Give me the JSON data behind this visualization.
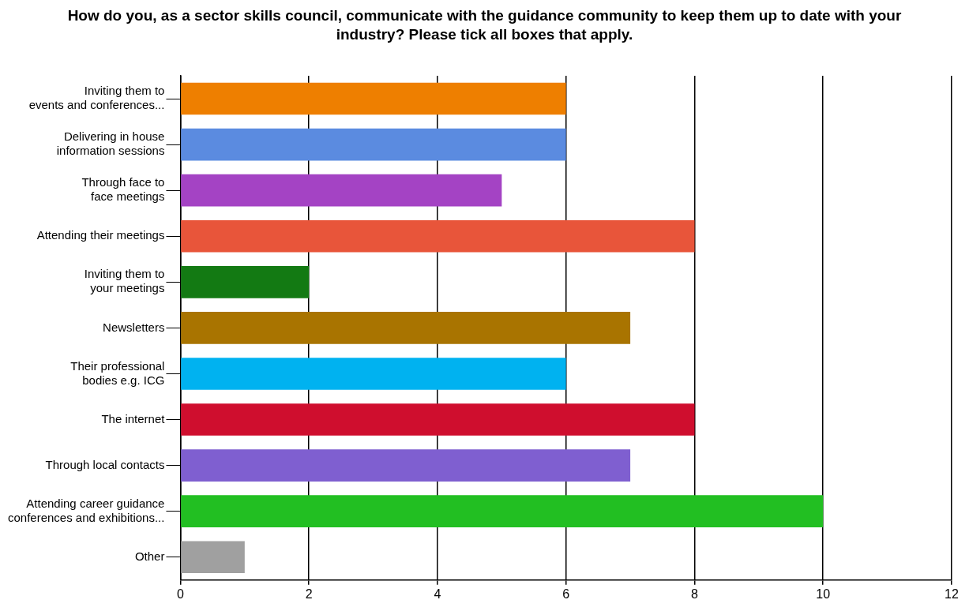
{
  "chart_data": {
    "type": "bar",
    "orientation": "horizontal",
    "title": "How do you, as a sector skills council, communicate with the guidance community to keep them up to date with your industry? Please tick all boxes that apply.",
    "categories": [
      "Inviting them to\nevents and conferences...",
      "Delivering in house\ninformation sessions",
      "Through face to\nface meetings",
      "Attending their meetings",
      "Inviting them to\nyour meetings",
      "Newsletters",
      "Their professional\nbodies e.g. ICG",
      "The internet",
      "Through local contacts",
      "Attending career guidance\nconferences and exhibitions...",
      "Other"
    ],
    "values": [
      6,
      6,
      5,
      8,
      2,
      7,
      6,
      8,
      7,
      10,
      1
    ],
    "colors": [
      "#ee7f00",
      "#5b8be0",
      "#a443c4",
      "#e8553a",
      "#137a13",
      "#a97400",
      "#00b2f0",
      "#cf0e2e",
      "#7f5fd0",
      "#22bf22",
      "#a0a0a0"
    ],
    "xlim": [
      0,
      12
    ],
    "xticks": [
      0,
      2,
      4,
      6,
      8,
      10,
      12
    ],
    "grid": "x"
  }
}
